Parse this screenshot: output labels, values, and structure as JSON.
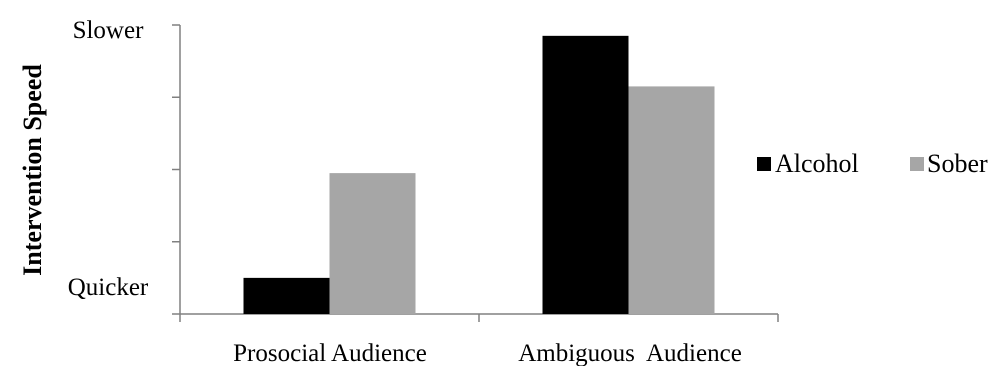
{
  "chart_data": {
    "type": "bar",
    "title": "",
    "xlabel": "",
    "ylabel": "Intervention Speed",
    "ylim": [
      0,
      4
    ],
    "ytick_labels": {
      "top": "Slower",
      "bottom": "Quicker"
    },
    "categories": [
      "Prosocial Audience",
      "Ambiguous  Audience"
    ],
    "series": [
      {
        "name": "Alcohol",
        "color": "#000000",
        "values": [
          0.5,
          3.85
        ]
      },
      {
        "name": "Sober",
        "color": "#a6a6a6",
        "values": [
          1.95,
          3.15
        ]
      }
    ],
    "grid": false,
    "legend": "right"
  }
}
